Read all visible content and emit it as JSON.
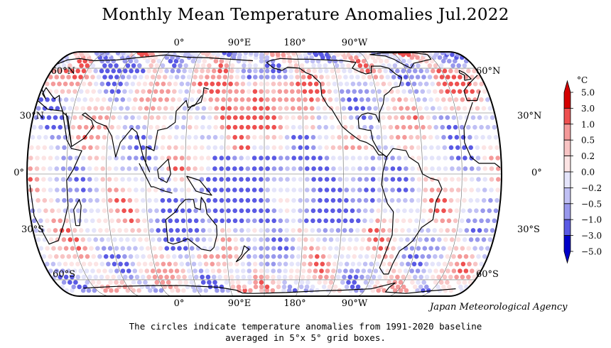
{
  "title": "Monthly Mean Temperature Anomalies Jul.2022",
  "top_lon_labels": [
    "0°",
    "90°E",
    "180°",
    "90°W"
  ],
  "bottom_lon_labels": [
    "0°",
    "90°E",
    "180°",
    "90°W"
  ],
  "left_lat_labels": [
    "60°N",
    "30°N",
    "0°",
    "30°S",
    "60°S"
  ],
  "right_lat_labels": [
    "60°N",
    "30°N",
    "0°",
    "30°S",
    "60°S"
  ],
  "colorbar": {
    "unit": "°C",
    "ticks": [
      "5.0",
      "3.0",
      "1.0",
      "0.5",
      "0.2",
      "0.0",
      "−0.2",
      "−0.5",
      "−1.0",
      "−3.0",
      "−5.0"
    ],
    "colors": [
      "#d40000",
      "#ee5050",
      "#f49a9a",
      "#f8c4c4",
      "#fce4e4",
      "#e4e4fa",
      "#c0c0f4",
      "#9898ec",
      "#5a5ae4",
      "#0000c8"
    ]
  },
  "agency": "Japan Meteorological Agency",
  "caption_line1": "The circles indicate temperature anomalies from 1991-2020 baseline",
  "caption_line2": "averaged in 5°x 5° grid boxes."
}
